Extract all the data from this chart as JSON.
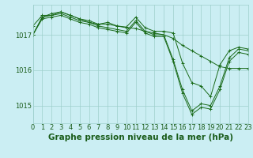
{
  "title": "Graphe pression niveau de la mer (hPa)",
  "background_color": "#cbeef3",
  "plot_bg_color": "#cbeef3",
  "line_color": "#1a6b1a",
  "grid_color": "#9ecfcc",
  "text_color": "#1a5c1a",
  "xlabel_color": "#1a5c1a",
  "xlim": [
    0,
    23
  ],
  "ylim": [
    1014.5,
    1017.85
  ],
  "yticks": [
    1015,
    1016,
    1017
  ],
  "xticks": [
    0,
    1,
    2,
    3,
    4,
    5,
    6,
    7,
    8,
    9,
    10,
    11,
    12,
    13,
    14,
    15,
    16,
    17,
    18,
    19,
    20,
    21,
    22,
    23
  ],
  "series": [
    [
      1017.25,
      1017.55,
      1017.55,
      1017.65,
      1017.55,
      1017.45,
      1017.35,
      1017.3,
      1017.35,
      1017.25,
      1017.2,
      1017.18,
      1017.1,
      1017.05,
      1017.0,
      1016.9,
      1016.7,
      1016.55,
      1016.4,
      1016.25,
      1016.1,
      1016.05,
      1016.05,
      1016.05
    ],
    [
      1017.0,
      1017.5,
      1017.6,
      1017.65,
      1017.55,
      1017.45,
      1017.4,
      1017.3,
      1017.3,
      1017.25,
      1017.22,
      1017.5,
      1017.2,
      1017.1,
      1017.1,
      1017.05,
      1016.2,
      1015.65,
      1015.55,
      1015.25,
      1016.15,
      1016.55,
      1016.65,
      1016.6
    ],
    [
      1017.0,
      1017.5,
      1017.55,
      1017.6,
      1017.5,
      1017.4,
      1017.35,
      1017.25,
      1017.2,
      1017.15,
      1017.1,
      1017.4,
      1017.1,
      1017.0,
      1017.0,
      1016.3,
      1015.45,
      1014.85,
      1015.05,
      1015.0,
      1015.55,
      1016.35,
      1016.6,
      1016.55
    ],
    [
      1017.0,
      1017.45,
      1017.5,
      1017.55,
      1017.45,
      1017.35,
      1017.3,
      1017.2,
      1017.15,
      1017.1,
      1017.05,
      1017.35,
      1017.05,
      1016.95,
      1016.95,
      1016.25,
      1015.35,
      1014.75,
      1014.95,
      1014.9,
      1015.45,
      1016.25,
      1016.5,
      1016.45
    ]
  ],
  "tick_fontsize": 6,
  "label_fontsize": 7.5
}
